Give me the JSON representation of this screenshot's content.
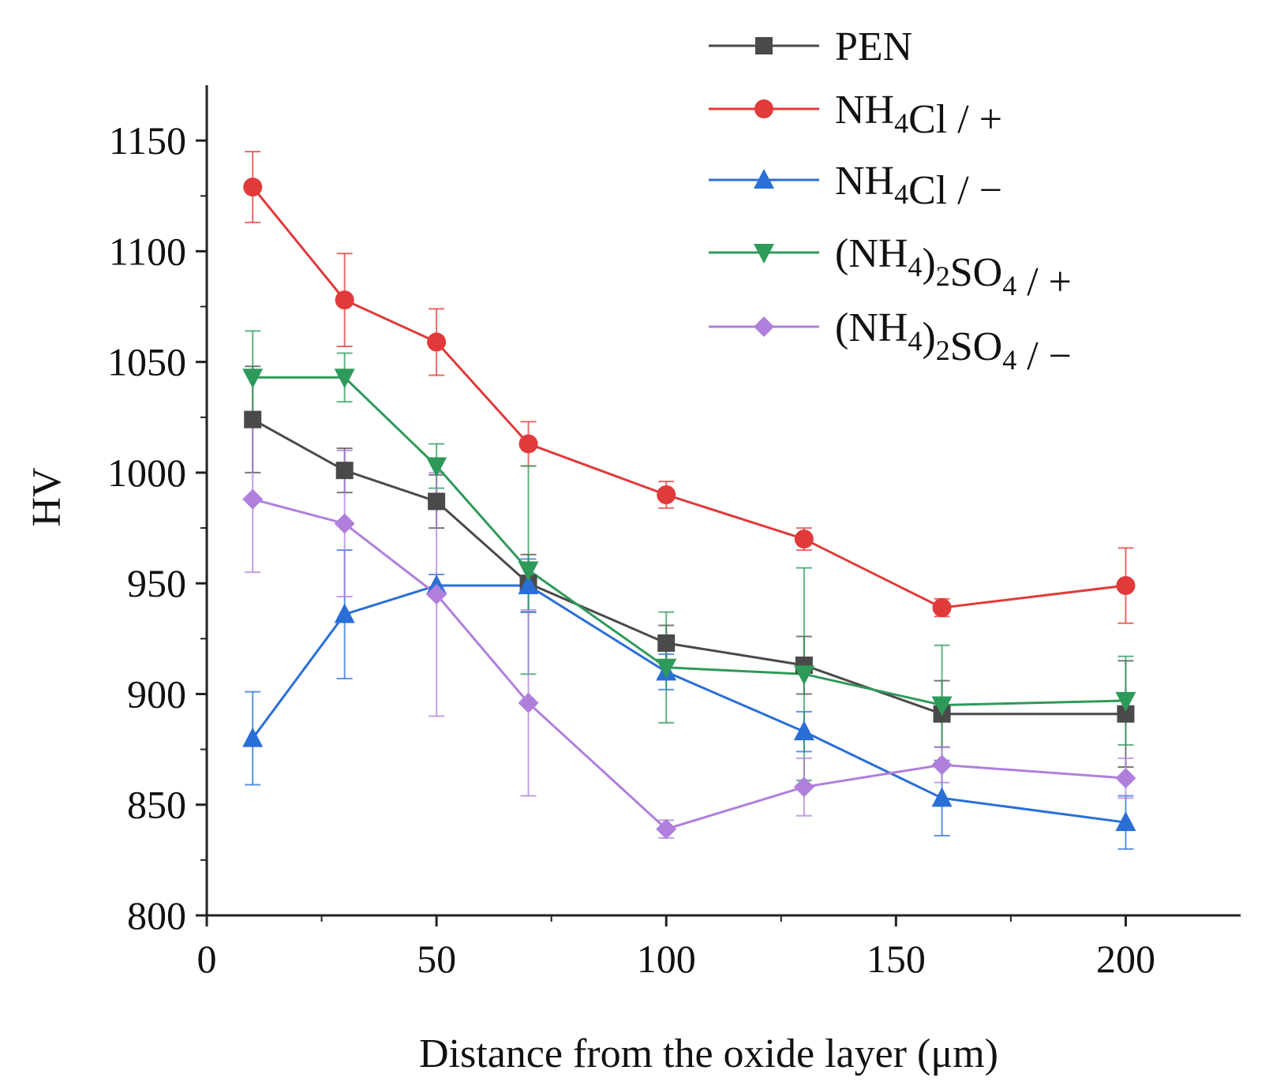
{
  "chart_data": {
    "type": "line",
    "title": "",
    "xlabel": "Distance from the oxide layer (μm)",
    "ylabel": "HV",
    "xlim": [
      0,
      225
    ],
    "ylim": [
      800,
      1175
    ],
    "x_ticks": [
      0,
      50,
      100,
      150,
      200
    ],
    "y_ticks": [
      800,
      850,
      900,
      950,
      1000,
      1050,
      1100,
      1150
    ],
    "x_tick_labels": [
      "0",
      "50",
      "100",
      "150",
      "200"
    ],
    "y_tick_labels": [
      "800",
      "850",
      "900",
      "950",
      "1000",
      "1050",
      "1100",
      "1150"
    ],
    "grid": false,
    "legend_position": "top-right",
    "x": [
      10,
      30,
      50,
      70,
      100,
      130,
      160,
      200
    ],
    "series": [
      {
        "name": "PEN",
        "label_parts": [
          {
            "t": "PEN"
          }
        ],
        "color": "#4a4a4a",
        "marker": "square",
        "values": [
          1024,
          1001,
          987,
          950,
          923,
          913,
          891,
          891
        ],
        "errors": [
          24,
          10,
          12,
          13,
          8,
          13,
          15,
          24
        ]
      },
      {
        "name": "NH4Cl / +",
        "label_parts": [
          {
            "t": "NH"
          },
          {
            "t": "4",
            "sub": true
          },
          {
            "t": "Cl / +"
          }
        ],
        "color": "#e03a3a",
        "marker": "circle",
        "values": [
          1129,
          1078,
          1059,
          1013,
          990,
          970,
          939,
          949
        ],
        "errors": [
          16,
          21,
          15,
          10,
          6,
          5,
          4,
          17
        ]
      },
      {
        "name": "NH4Cl / −",
        "label_parts": [
          {
            "t": "NH"
          },
          {
            "t": "4",
            "sub": true
          },
          {
            "t": "Cl / −"
          }
        ],
        "color": "#2a6fd6",
        "marker": "triangle-up",
        "values": [
          880,
          936,
          949,
          949,
          910,
          883,
          853,
          842
        ],
        "errors": [
          21,
          29,
          5,
          12,
          8,
          9,
          17,
          12
        ]
      },
      {
        "name": "(NH4)2SO4 / +",
        "label_parts": [
          {
            "t": "(NH"
          },
          {
            "t": "4",
            "sub": true
          },
          {
            "t": ")"
          },
          {
            "t": "2",
            "sub": true
          },
          {
            "t": "SO"
          },
          {
            "t": "4",
            "sub": true
          },
          {
            "t": " / +"
          }
        ],
        "color": "#2e9a5a",
        "marker": "triangle-down",
        "values": [
          1043,
          1043,
          1003,
          956,
          912,
          909,
          895,
          897
        ],
        "errors": [
          21,
          11,
          10,
          47,
          25,
          48,
          27,
          20
        ]
      },
      {
        "name": "(NH4)2SO4 / −",
        "label_parts": [
          {
            "t": "(NH"
          },
          {
            "t": "4",
            "sub": true
          },
          {
            "t": ")"
          },
          {
            "t": "2",
            "sub": true
          },
          {
            "t": "SO"
          },
          {
            "t": "4",
            "sub": true
          },
          {
            "t": " / −"
          }
        ],
        "color": "#b07fdb",
        "marker": "diamond",
        "values": [
          988,
          977,
          945,
          896,
          839,
          858,
          868,
          862
        ],
        "errors": [
          33,
          33,
          55,
          42,
          4,
          13,
          8,
          9
        ]
      }
    ]
  }
}
